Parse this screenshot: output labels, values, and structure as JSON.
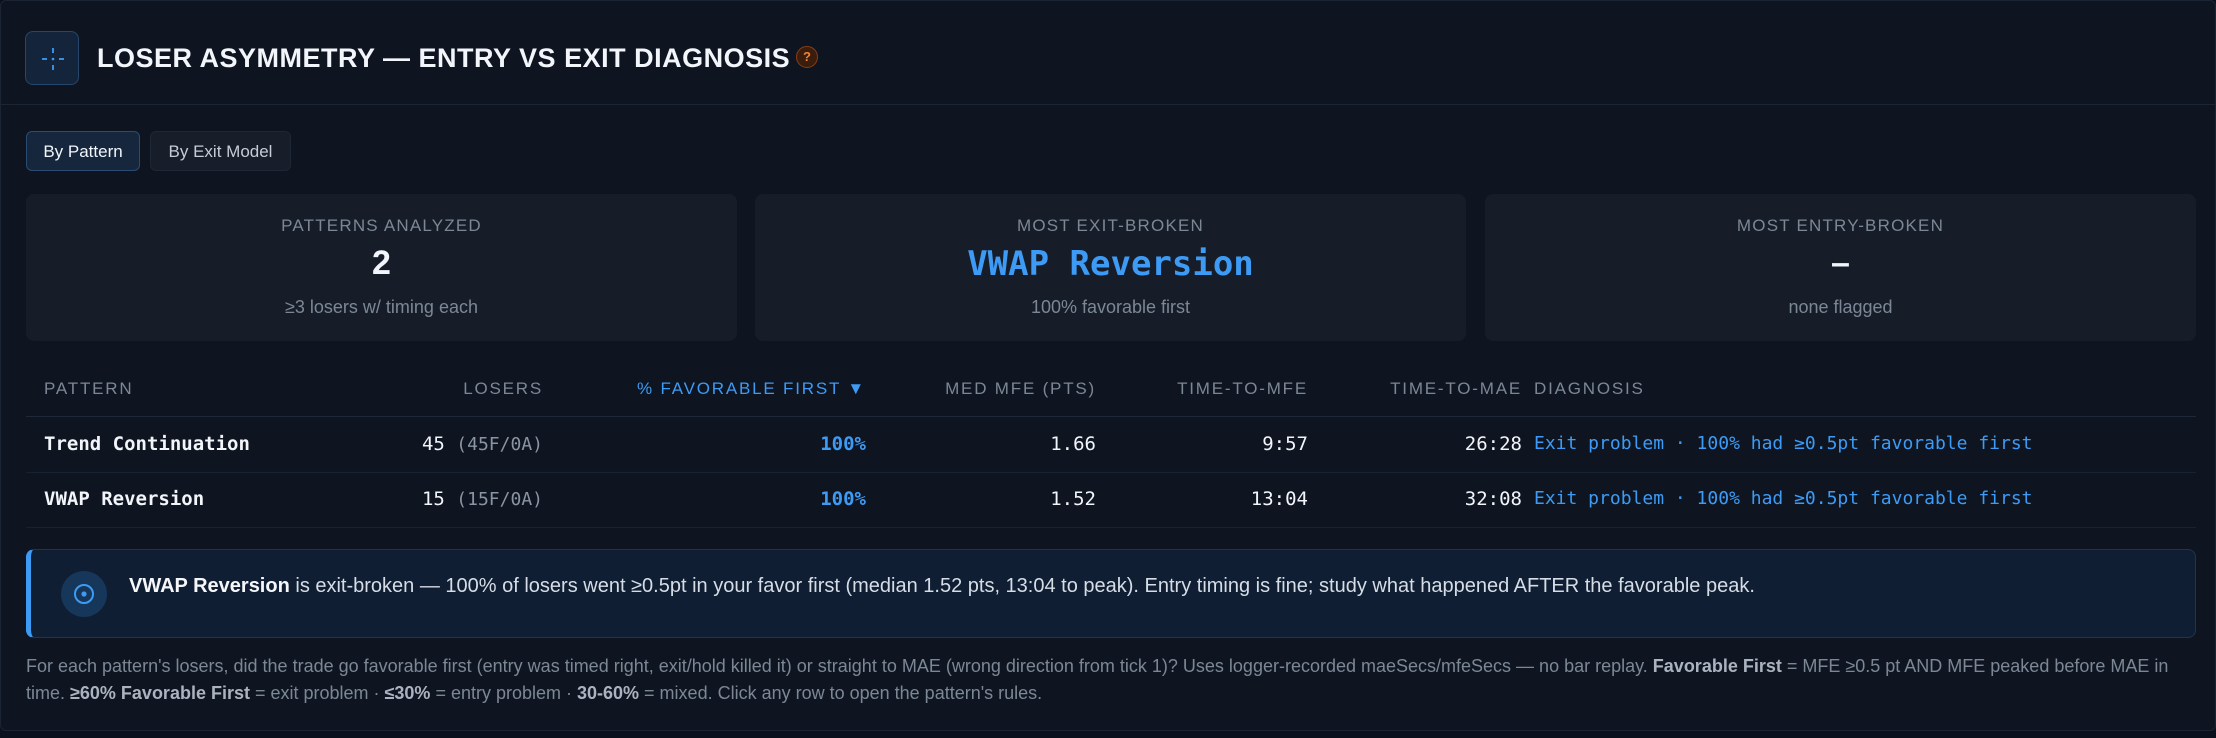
{
  "header": {
    "title": "LOSER ASYMMETRY — ENTRY VS EXIT DIAGNOSIS",
    "help_label": "?",
    "icon": "crosshair-icon"
  },
  "tabs": [
    {
      "label": "By Pattern",
      "active": true
    },
    {
      "label": "By Exit Model",
      "active": false
    }
  ],
  "cards": [
    {
      "label": "PATTERNS ANALYZED",
      "value": "2",
      "sub": "≥3 losers w/ timing each"
    },
    {
      "label": "MOST EXIT-BROKEN",
      "value": "VWAP Reversion",
      "sub": "100% favorable first"
    },
    {
      "label": "MOST ENTRY-BROKEN",
      "value": "–",
      "sub": "none flagged"
    }
  ],
  "table": {
    "headers": {
      "pattern": "PATTERN",
      "losers": "LOSERS",
      "favorable": "% FAVORABLE FIRST ▼",
      "mfe": "MED MFE (PTS)",
      "ttmfe": "TIME-TO-MFE",
      "ttmae": "TIME-TO-MAE",
      "diagnosis": "DIAGNOSIS"
    },
    "rows": [
      {
        "pattern": "Trend Continuation",
        "losers": "45",
        "losers_detail": "(45F/0A)",
        "favorable": "100%",
        "mfe": "1.66",
        "ttmfe": "9:57",
        "ttmae": "26:28",
        "diagnosis": "Exit problem · 100% had ≥0.5pt favorable first"
      },
      {
        "pattern": "VWAP Reversion",
        "losers": "15",
        "losers_detail": "(15F/0A)",
        "favorable": "100%",
        "mfe": "1.52",
        "ttmfe": "13:04",
        "ttmae": "32:08",
        "diagnosis": "Exit problem · 100% had ≥0.5pt favorable first"
      }
    ]
  },
  "callout": {
    "icon": "info-circle-icon",
    "bold": "VWAP Reversion",
    "text": " is exit-broken — 100% of losers went ≥0.5pt in your favor first (median 1.52 pts, 13:04 to peak). Entry timing is fine; study what happened AFTER the favorable peak."
  },
  "footnote": {
    "p1": "For each pattern's losers, did the trade go favorable first (entry was timed right, exit/hold killed it) or straight to MAE (wrong direction from tick 1)? Uses logger-recorded maeSecs/mfeSecs — no bar replay. ",
    "b1": "Favorable First",
    "p2": " = MFE ≥0.5 pt AND MFE peaked before MAE in time. ",
    "b2": "≥60% Favorable First",
    "p3": " = exit problem · ",
    "b3": "≤30%",
    "p4": " = entry problem · ",
    "b4": "30-60%",
    "p5": " = mixed. Click any row to open the pattern's rules."
  },
  "colors": {
    "accent": "#3d9bf5",
    "background": "#0e1521",
    "card": "#161d29",
    "warning": "#f0843a"
  }
}
